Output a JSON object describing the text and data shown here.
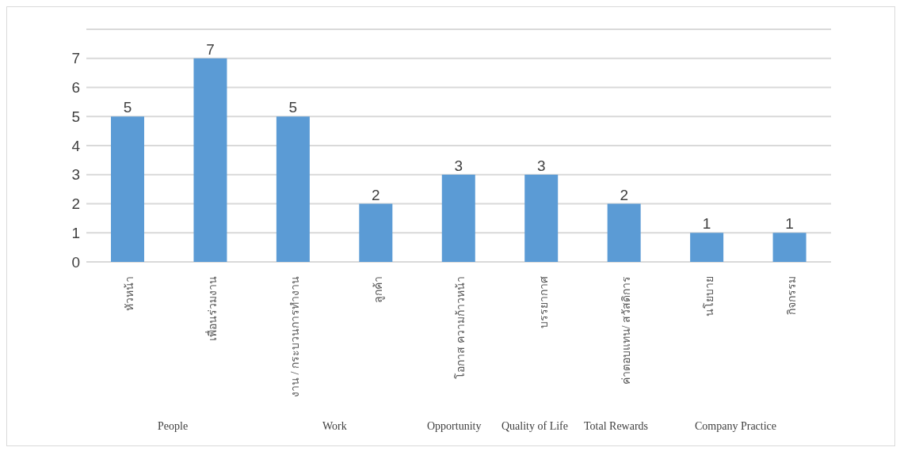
{
  "chart_data": {
    "type": "bar",
    "categories": [
      "หัวหน้า",
      "เพื่อนร่วมงาน",
      "งาน / กระบวนการทำงาน",
      "ลูกค้า",
      "โอกาส ความก้าวหน้า",
      "บรรยากาศ",
      "ค่าตอบแทน/ สวัสดิการ",
      "นโยบาย",
      "กิจกรรม"
    ],
    "values": [
      5,
      7,
      5,
      2,
      3,
      3,
      2,
      1,
      1
    ],
    "color": "#5b9bd5",
    "ylim": [
      0,
      8
    ],
    "yticks": [
      0,
      1,
      2,
      3,
      4,
      5,
      6,
      7,
      {
        "value": 8,
        "label": null
      }
    ],
    "grid": "y",
    "data_labels": true,
    "annotations": [
      "People",
      "Work",
      "Opportunity",
      "Quality of Life",
      "Total Rewards",
      "Company Practice"
    ]
  }
}
